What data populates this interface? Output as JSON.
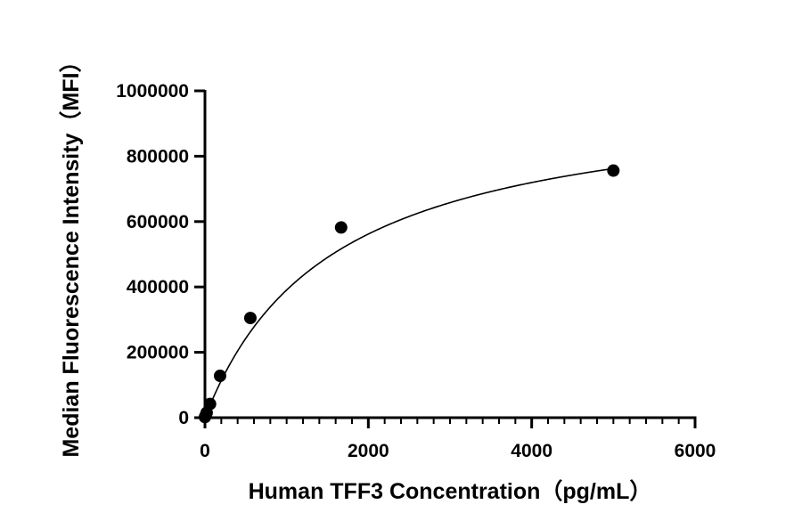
{
  "chart_data": {
    "type": "scatter",
    "title": "",
    "xlabel": "Human TFF3 Concentration（pg/mL）",
    "ylabel": "Median Fluorescence Intensity（MFI）",
    "xlim": [
      0,
      6000
    ],
    "ylim": [
      0,
      1000000
    ],
    "x_ticks": [
      0,
      2000,
      4000,
      6000
    ],
    "y_ticks": [
      0,
      200000,
      400000,
      600000,
      800000,
      1000000
    ],
    "x_tick_labels": [
      "0",
      "2000",
      "4000",
      "6000"
    ],
    "y_tick_labels": [
      "0",
      "200000",
      "400000",
      "600000",
      "800000",
      "1000000"
    ],
    "x_minor_step": 200,
    "grid": false,
    "legend": "none",
    "colors": {
      "marker": "#000000",
      "curve": "#000000",
      "axis": "#000000"
    },
    "series": [
      {
        "x": [
          0,
          7,
          21,
          62,
          185,
          556,
          1667,
          5000
        ],
        "y": [
          2000,
          6000,
          15000,
          42000,
          128000,
          305000,
          582000,
          756000
        ]
      }
    ],
    "fit_curve": {
      "model": "4PL",
      "bottom": 0,
      "top": 1000000,
      "ec50": 1560,
      "hill": 1.0,
      "x_range": [
        0,
        5000
      ]
    }
  }
}
